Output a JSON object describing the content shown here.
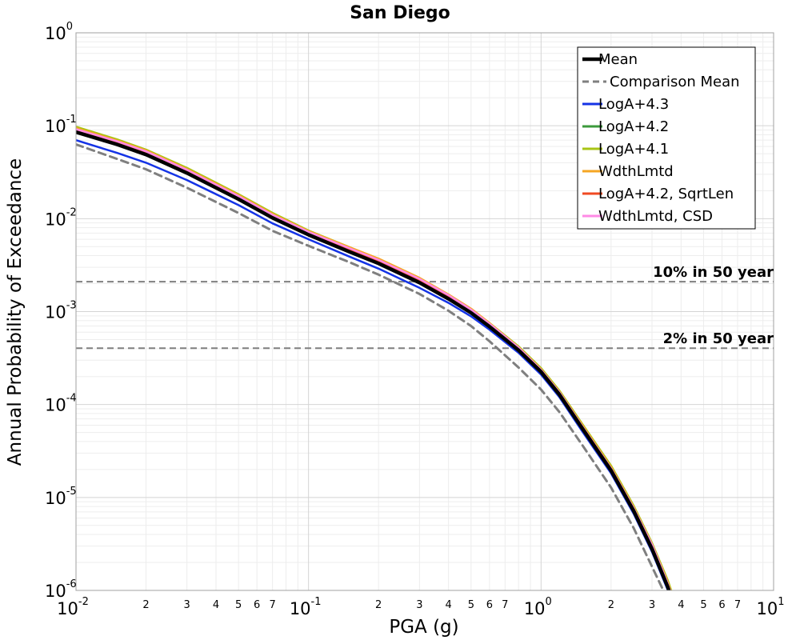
{
  "chart_data": {
    "type": "line",
    "title": "San Diego",
    "xlabel": "PGA (g)",
    "ylabel": "Annual Probability of Exceedance",
    "xscale": "log",
    "yscale": "log",
    "xlim": [
      0.01,
      10
    ],
    "ylim": [
      1e-06,
      1
    ],
    "grid": true,
    "legend_placement": "top-right",
    "x_ticks": [
      {
        "base": "10",
        "exp": "-2",
        "value": 0.01
      },
      {
        "base": "10",
        "exp": "-1",
        "value": 0.1
      },
      {
        "base": "10",
        "exp": "0",
        "value": 1
      },
      {
        "base": "10",
        "exp": "1",
        "value": 10
      }
    ],
    "x_minor_tick_labels": [
      "2",
      "3",
      "4",
      "5",
      "6",
      "7"
    ],
    "y_ticks": [
      {
        "base": "10",
        "exp": "0",
        "value": 1
      },
      {
        "base": "10",
        "exp": "-1",
        "value": 0.1
      },
      {
        "base": "10",
        "exp": "-2",
        "value": 0.01
      },
      {
        "base": "10",
        "exp": "-3",
        "value": 0.001
      },
      {
        "base": "10",
        "exp": "-4",
        "value": 0.0001
      },
      {
        "base": "10",
        "exp": "-5",
        "value": 1e-05
      },
      {
        "base": "10",
        "exp": "-6",
        "value": 1e-06
      }
    ],
    "reference_lines": [
      {
        "label": "10% in 50 year",
        "y": 0.0021
      },
      {
        "label": "2% in 50 year",
        "y": 0.000404
      }
    ],
    "series": [
      {
        "name": "Mean",
        "color": "#000000",
        "style": "solid",
        "width": 4.5,
        "x": [
          0.01,
          0.015,
          0.02,
          0.03,
          0.05,
          0.07,
          0.1,
          0.15,
          0.2,
          0.3,
          0.4,
          0.5,
          0.6,
          0.8,
          1.0,
          1.2,
          1.5,
          2.0,
          2.5,
          3.0,
          3.5,
          3.8
        ],
        "y": [
          0.0855,
          0.063,
          0.049,
          0.031,
          0.0162,
          0.0102,
          0.0067,
          0.0044,
          0.0033,
          0.00205,
          0.00137,
          0.00097,
          0.00069,
          0.000385,
          0.000225,
          0.000128,
          5.6e-05,
          1.95e-05,
          7.2e-06,
          2.8e-06,
          1.1e-06,
          6e-07
        ]
      },
      {
        "name": "Comparison Mean",
        "color": "#7f7f7f",
        "style": "dashed",
        "width": 3,
        "x": [
          0.01,
          0.015,
          0.02,
          0.03,
          0.05,
          0.07,
          0.1,
          0.15,
          0.2,
          0.3,
          0.4,
          0.5,
          0.6,
          0.8,
          1.0,
          1.2,
          1.5,
          2.0,
          2.5,
          3.0,
          3.5,
          3.8
        ],
        "y": [
          0.063,
          0.044,
          0.034,
          0.0215,
          0.0115,
          0.0074,
          0.0051,
          0.0034,
          0.0025,
          0.00155,
          0.00102,
          0.0007,
          0.00048,
          0.00025,
          0.000145,
          8.3e-05,
          3.7e-05,
          1.28e-05,
          4.7e-06,
          1.8e-06,
          8e-07,
          4.8e-07
        ]
      },
      {
        "name": "LogA+4.3",
        "color": "#1433e6",
        "style": "solid",
        "width": 2.5,
        "x": [
          0.01,
          0.015,
          0.02,
          0.03,
          0.05,
          0.07,
          0.1,
          0.15,
          0.2,
          0.3,
          0.4,
          0.5,
          0.6,
          0.8,
          1.0,
          1.2,
          1.5,
          2.0,
          2.5,
          3.0,
          3.5,
          3.8
        ],
        "y": [
          0.07,
          0.051,
          0.04,
          0.026,
          0.014,
          0.0089,
          0.006,
          0.0039,
          0.0029,
          0.0018,
          0.00124,
          0.00089,
          0.00064,
          0.00036,
          0.00021,
          0.00012,
          5.2e-05,
          1.82e-05,
          6.7e-06,
          2.6e-06,
          1.02e-06,
          5.6e-07
        ]
      },
      {
        "name": "LogA+4.2",
        "color": "#3c9a3c",
        "style": "solid",
        "width": 2.5,
        "x": [
          0.01,
          0.015,
          0.02,
          0.03,
          0.05,
          0.07,
          0.1,
          0.15,
          0.2,
          0.3,
          0.4,
          0.5,
          0.6,
          0.8,
          1.0,
          1.2,
          1.5,
          2.0,
          2.5,
          3.0,
          3.5,
          3.8
        ],
        "y": [
          0.088,
          0.065,
          0.051,
          0.032,
          0.0168,
          0.0106,
          0.0069,
          0.0046,
          0.0034,
          0.0021,
          0.0014,
          0.00099,
          0.0007,
          0.00039,
          0.000228,
          0.00013,
          5.7e-05,
          1.98e-05,
          7.3e-06,
          2.9e-06,
          1.15e-06,
          6.2e-07
        ]
      },
      {
        "name": "LogA+4.1",
        "color": "#a8c414",
        "style": "solid",
        "width": 3,
        "x": [
          0.01,
          0.015,
          0.02,
          0.03,
          0.05,
          0.07,
          0.1,
          0.15,
          0.2,
          0.3,
          0.4,
          0.5,
          0.6,
          0.8,
          1.0,
          1.2,
          1.5,
          2.0,
          2.5,
          3.0,
          3.5,
          3.8
        ],
        "y": [
          0.097,
          0.071,
          0.055,
          0.035,
          0.0182,
          0.0115,
          0.0074,
          0.0049,
          0.0036,
          0.00225,
          0.00149,
          0.00106,
          0.00075,
          0.00042,
          0.000245,
          0.00014,
          6.2e-05,
          2.18e-05,
          8.1e-06,
          3.2e-06,
          1.28e-06,
          7e-07
        ]
      },
      {
        "name": "WdthLmtd",
        "color": "#f5a623",
        "style": "solid",
        "width": 3,
        "x": [
          0.01,
          0.015,
          0.02,
          0.03,
          0.05,
          0.07,
          0.1,
          0.15,
          0.2,
          0.3,
          0.4,
          0.5,
          0.6,
          0.8,
          1.0,
          1.2,
          1.5,
          2.0,
          2.5,
          3.0,
          3.5,
          3.8
        ],
        "y": [
          0.094,
          0.069,
          0.054,
          0.034,
          0.0178,
          0.0112,
          0.0073,
          0.0049,
          0.0037,
          0.0023,
          0.00152,
          0.00107,
          0.00075,
          0.00041,
          0.000238,
          0.000136,
          6e-05,
          2.1e-05,
          7.8e-06,
          3.1e-06,
          1.22e-06,
          6.6e-07
        ]
      },
      {
        "name": "LogA+4.2, SqrtLen",
        "color": "#f04a23",
        "style": "solid",
        "width": 2.5,
        "x": [
          0.01,
          0.015,
          0.02,
          0.03,
          0.05,
          0.07,
          0.1,
          0.15,
          0.2,
          0.3,
          0.4,
          0.5,
          0.6,
          0.8,
          1.0,
          1.2,
          1.5,
          2.0,
          2.5,
          3.0,
          3.5,
          3.8
        ],
        "y": [
          0.09,
          0.066,
          0.052,
          0.0325,
          0.017,
          0.0108,
          0.007,
          0.0047,
          0.0035,
          0.00215,
          0.00143,
          0.00101,
          0.00072,
          0.0004,
          0.000232,
          0.000133,
          5.8e-05,
          2.02e-05,
          7.5e-06,
          3e-06,
          1.18e-06,
          6.4e-07
        ]
      },
      {
        "name": "WdthLmtd, CSD",
        "color": "#ff8ae6",
        "style": "solid",
        "width": 2.5,
        "x": [
          0.01,
          0.015,
          0.02,
          0.03,
          0.05,
          0.07,
          0.1,
          0.15,
          0.2,
          0.3,
          0.4,
          0.5,
          0.6,
          0.8,
          1.0,
          1.2,
          1.5,
          2.0,
          2.5,
          3.0,
          3.5,
          3.8
        ],
        "y": [
          0.092,
          0.068,
          0.053,
          0.0335,
          0.0175,
          0.011,
          0.0072,
          0.0048,
          0.0036,
          0.00225,
          0.0015,
          0.00105,
          0.00074,
          0.00041,
          0.000236,
          0.000135,
          5.9e-05,
          2.06e-05,
          7.7e-06,
          3.1e-06,
          1.2e-06,
          6.5e-07
        ]
      }
    ],
    "draw_order": [
      1,
      2,
      3,
      4,
      5,
      6,
      7,
      0
    ]
  }
}
